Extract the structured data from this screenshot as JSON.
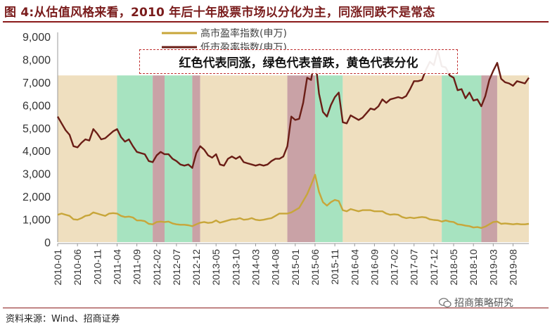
{
  "title": "图 4:从估值风格来看，2010 年后十年股票市场以分化为主，同涨同跌不是常态",
  "source": "资料来源：Wind、招商证券",
  "watermark": "招商策略研究",
  "annotation": "红色代表同涨，绿色代表普跌，黄色代表分化",
  "colors": {
    "high_pe": "#c8a63a",
    "low_pe": "#6b1e16",
    "band_red": "#c9a2a6",
    "band_green": "#a7e3c0",
    "band_yellow": "#efdfbf",
    "title": "#7a1c1c"
  },
  "chart_data": {
    "type": "line",
    "x_range": [
      "2010-01",
      "2019-12"
    ],
    "x_tick_labels": [
      "2010-01",
      "2010-06",
      "2010-11",
      "2011-04",
      "2011-09",
      "2012-02",
      "2012-07",
      "2012-12",
      "2013-05",
      "2013-10",
      "2014-03",
      "2014-08",
      "2015-01",
      "2015-06",
      "2015-11",
      "2016-04",
      "2016-09",
      "2017-02",
      "2017-07",
      "2017-12",
      "2018-05",
      "2018-10",
      "2019-03",
      "2019-08"
    ],
    "ylim": [
      0,
      9000
    ],
    "y_ticks": [
      "0",
      "1,000",
      "2,000",
      "3,000",
      "4,000",
      "5,000",
      "6,000",
      "7,000",
      "8,000",
      "9,000"
    ],
    "legend": [
      "高市盈率指数(申万)",
      "低市盈率指数(申万)"
    ],
    "bands": [
      {
        "from": "2010-01",
        "to": "2011-04",
        "color": "yellow",
        "top": 7300
      },
      {
        "from": "2011-04",
        "to": "2012-01",
        "color": "green",
        "top": 7300
      },
      {
        "from": "2012-01",
        "to": "2012-04",
        "color": "red",
        "top": 7300
      },
      {
        "from": "2012-04",
        "to": "2012-11",
        "color": "green",
        "top": 7300
      },
      {
        "from": "2012-11",
        "to": "2013-01",
        "color": "red",
        "top": 7300
      },
      {
        "from": "2013-01",
        "to": "2014-11",
        "color": "yellow",
        "top": 7300
      },
      {
        "from": "2014-11",
        "to": "2015-06",
        "color": "red",
        "top": 7300
      },
      {
        "from": "2015-06",
        "to": "2016-01",
        "color": "green",
        "top": 7300
      },
      {
        "from": "2016-01",
        "to": "2018-02",
        "color": "yellow",
        "top": 7300
      },
      {
        "from": "2018-02",
        "to": "2018-12",
        "color": "green",
        "top": 7300
      },
      {
        "from": "2018-12",
        "to": "2019-04",
        "color": "red",
        "top": 7300
      },
      {
        "from": "2019-04",
        "to": "2019-12",
        "color": "yellow",
        "top": 7300
      }
    ],
    "series": [
      {
        "name": "低市盈率指数(申万)",
        "points": [
          [
            "2010-01",
            5500
          ],
          [
            "2010-02",
            5200
          ],
          [
            "2010-03",
            4900
          ],
          [
            "2010-04",
            4700
          ],
          [
            "2010-05",
            4200
          ],
          [
            "2010-06",
            4150
          ],
          [
            "2010-07",
            4350
          ],
          [
            "2010-08",
            4500
          ],
          [
            "2010-09",
            4450
          ],
          [
            "2010-10",
            4950
          ],
          [
            "2010-11",
            4750
          ],
          [
            "2010-12",
            4500
          ],
          [
            "2011-01",
            4550
          ],
          [
            "2011-02",
            4700
          ],
          [
            "2011-03",
            4850
          ],
          [
            "2011-04",
            4950
          ],
          [
            "2011-05",
            4600
          ],
          [
            "2011-06",
            4400
          ],
          [
            "2011-07",
            4500
          ],
          [
            "2011-08",
            4200
          ],
          [
            "2011-09",
            3950
          ],
          [
            "2011-10",
            3900
          ],
          [
            "2011-11",
            3850
          ],
          [
            "2011-12",
            3550
          ],
          [
            "2012-01",
            3500
          ],
          [
            "2012-02",
            3800
          ],
          [
            "2012-03",
            3950
          ],
          [
            "2012-04",
            3850
          ],
          [
            "2012-05",
            3850
          ],
          [
            "2012-06",
            3650
          ],
          [
            "2012-07",
            3550
          ],
          [
            "2012-08",
            3400
          ],
          [
            "2012-09",
            3350
          ],
          [
            "2012-10",
            3400
          ],
          [
            "2012-11",
            3250
          ],
          [
            "2012-12",
            3900
          ],
          [
            "2013-01",
            4200
          ],
          [
            "2013-02",
            4050
          ],
          [
            "2013-03",
            3800
          ],
          [
            "2013-04",
            3700
          ],
          [
            "2013-05",
            3850
          ],
          [
            "2013-06",
            3400
          ],
          [
            "2013-07",
            3350
          ],
          [
            "2013-08",
            3650
          ],
          [
            "2013-09",
            3750
          ],
          [
            "2013-10",
            3650
          ],
          [
            "2013-11",
            3750
          ],
          [
            "2013-12",
            3500
          ],
          [
            "2014-01",
            3450
          ],
          [
            "2014-02",
            3400
          ],
          [
            "2014-03",
            3350
          ],
          [
            "2014-04",
            3400
          ],
          [
            "2014-05",
            3350
          ],
          [
            "2014-06",
            3400
          ],
          [
            "2014-07",
            3550
          ],
          [
            "2014-08",
            3650
          ],
          [
            "2014-09",
            3650
          ],
          [
            "2014-10",
            3750
          ],
          [
            "2014-11",
            4200
          ],
          [
            "2014-12",
            5500
          ],
          [
            "2015-01",
            5350
          ],
          [
            "2015-02",
            5400
          ],
          [
            "2015-03",
            6100
          ],
          [
            "2015-04",
            7200
          ],
          [
            "2015-05",
            7100
          ],
          [
            "2015-06",
            8100
          ],
          [
            "2015-07",
            6500
          ],
          [
            "2015-08",
            5700
          ],
          [
            "2015-09",
            5500
          ],
          [
            "2015-10",
            6000
          ],
          [
            "2015-11",
            6350
          ],
          [
            "2015-12",
            6550
          ],
          [
            "2016-01",
            5250
          ],
          [
            "2016-02",
            5200
          ],
          [
            "2016-03",
            5550
          ],
          [
            "2016-04",
            5450
          ],
          [
            "2016-05",
            5350
          ],
          [
            "2016-06",
            5450
          ],
          [
            "2016-07",
            5650
          ],
          [
            "2016-08",
            5850
          ],
          [
            "2016-09",
            5800
          ],
          [
            "2016-10",
            5950
          ],
          [
            "2016-11",
            6250
          ],
          [
            "2016-12",
            6100
          ],
          [
            "2017-01",
            6250
          ],
          [
            "2017-02",
            6300
          ],
          [
            "2017-03",
            6350
          ],
          [
            "2017-04",
            6300
          ],
          [
            "2017-05",
            6400
          ],
          [
            "2017-06",
            6700
          ],
          [
            "2017-07",
            7050
          ],
          [
            "2017-08",
            7050
          ],
          [
            "2017-09",
            7100
          ],
          [
            "2017-10",
            7550
          ],
          [
            "2017-11",
            7900
          ],
          [
            "2017-12",
            7750
          ],
          [
            "2018-01",
            8400
          ],
          [
            "2018-02",
            7700
          ],
          [
            "2018-03",
            7650
          ],
          [
            "2018-04",
            7300
          ],
          [
            "2018-05",
            7200
          ],
          [
            "2018-06",
            6650
          ],
          [
            "2018-07",
            6700
          ],
          [
            "2018-08",
            6300
          ],
          [
            "2018-09",
            6550
          ],
          [
            "2018-10",
            6200
          ],
          [
            "2018-11",
            6250
          ],
          [
            "2018-12",
            5950
          ],
          [
            "2019-01",
            6400
          ],
          [
            "2019-02",
            7100
          ],
          [
            "2019-03",
            7500
          ],
          [
            "2019-04",
            7850
          ],
          [
            "2019-05",
            7150
          ],
          [
            "2019-06",
            7000
          ],
          [
            "2019-07",
            6950
          ],
          [
            "2019-08",
            6850
          ],
          [
            "2019-09",
            7050
          ],
          [
            "2019-10",
            7000
          ],
          [
            "2019-11",
            6950
          ],
          [
            "2019-12",
            7200
          ]
        ]
      },
      {
        "name": "高市盈率指数(申万)",
        "points": [
          [
            "2010-01",
            1200
          ],
          [
            "2010-02",
            1250
          ],
          [
            "2010-03",
            1200
          ],
          [
            "2010-04",
            1150
          ],
          [
            "2010-05",
            1000
          ],
          [
            "2010-06",
            980
          ],
          [
            "2010-07",
            1050
          ],
          [
            "2010-08",
            1150
          ],
          [
            "2010-09",
            1180
          ],
          [
            "2010-10",
            1300
          ],
          [
            "2010-11",
            1250
          ],
          [
            "2010-12",
            1200
          ],
          [
            "2011-01",
            1150
          ],
          [
            "2011-02",
            1250
          ],
          [
            "2011-03",
            1270
          ],
          [
            "2011-04",
            1250
          ],
          [
            "2011-05",
            1150
          ],
          [
            "2011-06",
            1100
          ],
          [
            "2011-07",
            1120
          ],
          [
            "2011-08",
            1080
          ],
          [
            "2011-09",
            950
          ],
          [
            "2011-10",
            950
          ],
          [
            "2011-11",
            920
          ],
          [
            "2011-12",
            800
          ],
          [
            "2012-01",
            780
          ],
          [
            "2012-02",
            880
          ],
          [
            "2012-03",
            900
          ],
          [
            "2012-04",
            880
          ],
          [
            "2012-05",
            900
          ],
          [
            "2012-06",
            820
          ],
          [
            "2012-07",
            780
          ],
          [
            "2012-08",
            760
          ],
          [
            "2012-09",
            760
          ],
          [
            "2012-10",
            740
          ],
          [
            "2012-11",
            700
          ],
          [
            "2012-12",
            780
          ],
          [
            "2013-01",
            850
          ],
          [
            "2013-02",
            880
          ],
          [
            "2013-03",
            840
          ],
          [
            "2013-04",
            860
          ],
          [
            "2013-05",
            950
          ],
          [
            "2013-06",
            850
          ],
          [
            "2013-07",
            900
          ],
          [
            "2013-08",
            950
          ],
          [
            "2013-09",
            1000
          ],
          [
            "2013-10",
            1000
          ],
          [
            "2013-11",
            1050
          ],
          [
            "2013-12",
            980
          ],
          [
            "2014-01",
            1000
          ],
          [
            "2014-02",
            1050
          ],
          [
            "2014-03",
            980
          ],
          [
            "2014-04",
            960
          ],
          [
            "2014-05",
            980
          ],
          [
            "2014-06",
            1020
          ],
          [
            "2014-07",
            1050
          ],
          [
            "2014-08",
            1150
          ],
          [
            "2014-09",
            1250
          ],
          [
            "2014-10",
            1250
          ],
          [
            "2014-11",
            1250
          ],
          [
            "2014-12",
            1300
          ],
          [
            "2015-01",
            1400
          ],
          [
            "2015-02",
            1500
          ],
          [
            "2015-03",
            1800
          ],
          [
            "2015-04",
            2100
          ],
          [
            "2015-05",
            2500
          ],
          [
            "2015-06",
            2950
          ],
          [
            "2015-07",
            2200
          ],
          [
            "2015-08",
            1750
          ],
          [
            "2015-09",
            1600
          ],
          [
            "2015-10",
            1750
          ],
          [
            "2015-11",
            1850
          ],
          [
            "2015-12",
            1800
          ],
          [
            "2016-01",
            1400
          ],
          [
            "2016-02",
            1350
          ],
          [
            "2016-03",
            1450
          ],
          [
            "2016-04",
            1400
          ],
          [
            "2016-05",
            1350
          ],
          [
            "2016-06",
            1400
          ],
          [
            "2016-07",
            1400
          ],
          [
            "2016-08",
            1400
          ],
          [
            "2016-09",
            1350
          ],
          [
            "2016-10",
            1350
          ],
          [
            "2016-11",
            1350
          ],
          [
            "2016-12",
            1250
          ],
          [
            "2017-01",
            1200
          ],
          [
            "2017-02",
            1220
          ],
          [
            "2017-03",
            1200
          ],
          [
            "2017-04",
            1100
          ],
          [
            "2017-05",
            1050
          ],
          [
            "2017-06",
            1080
          ],
          [
            "2017-07",
            1050
          ],
          [
            "2017-08",
            1080
          ],
          [
            "2017-09",
            1100
          ],
          [
            "2017-10",
            1080
          ],
          [
            "2017-11",
            1000
          ],
          [
            "2017-12",
            970
          ],
          [
            "2018-01",
            960
          ],
          [
            "2018-02",
            900
          ],
          [
            "2018-03",
            950
          ],
          [
            "2018-04",
            900
          ],
          [
            "2018-05",
            880
          ],
          [
            "2018-06",
            780
          ],
          [
            "2018-07",
            760
          ],
          [
            "2018-08",
            720
          ],
          [
            "2018-09",
            700
          ],
          [
            "2018-10",
            640
          ],
          [
            "2018-11",
            660
          ],
          [
            "2018-12",
            620
          ],
          [
            "2019-01",
            680
          ],
          [
            "2019-02",
            780
          ],
          [
            "2019-03",
            880
          ],
          [
            "2019-04",
            900
          ],
          [
            "2019-05",
            800
          ],
          [
            "2019-06",
            820
          ],
          [
            "2019-07",
            800
          ],
          [
            "2019-08",
            780
          ],
          [
            "2019-09",
            800
          ],
          [
            "2019-10",
            780
          ],
          [
            "2019-11",
            780
          ],
          [
            "2019-12",
            800
          ]
        ]
      }
    ]
  }
}
